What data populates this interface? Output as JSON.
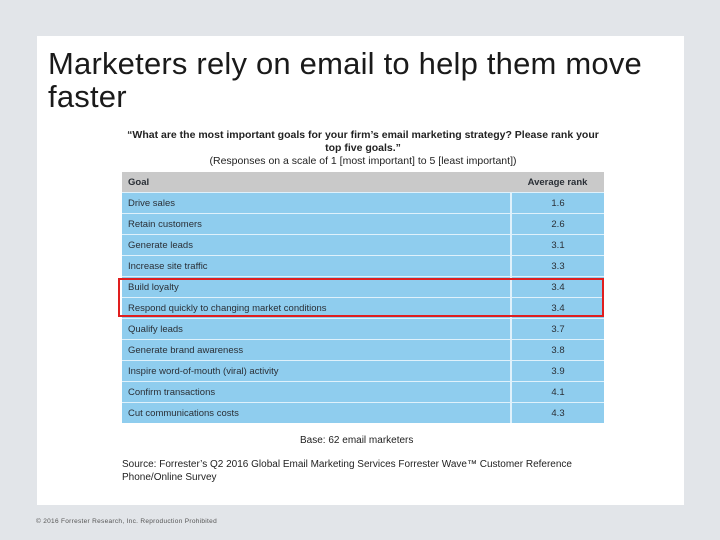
{
  "slide": {
    "title": "Marketers rely on email to help them move faster",
    "question": "“What are the most important goals for your firm’s email marketing strategy? Please rank your top five goals.”",
    "scale_note": "(Responses on a scale of 1 [most important] to 5 [least important])",
    "table": {
      "headers": {
        "goal": "Goal",
        "rank": "Average rank"
      },
      "rows": [
        {
          "goal": "Drive sales",
          "rank": "1.6"
        },
        {
          "goal": "Retain customers",
          "rank": "2.6"
        },
        {
          "goal": "Generate leads",
          "rank": "3.1"
        },
        {
          "goal": "Increase site traffic",
          "rank": "3.3"
        },
        {
          "goal": "Build loyalty",
          "rank": "3.4"
        },
        {
          "goal": "Respond quickly to changing market conditions",
          "rank": "3.4"
        },
        {
          "goal": "Qualify leads",
          "rank": "3.7"
        },
        {
          "goal": "Generate brand awareness",
          "rank": "3.8"
        },
        {
          "goal": "Inspire word-of-mouth (viral) activity",
          "rank": "3.9"
        },
        {
          "goal": "Confirm transactions",
          "rank": "4.1"
        },
        {
          "goal": "Cut communications costs",
          "rank": "4.3"
        }
      ]
    },
    "base": "Base: 62 email marketers",
    "source": "Source: Forrester’s Q2 2016 Global Email Marketing Services Forrester Wave™ Customer Reference Phone/Online Survey",
    "footer": "© 2016 Forrester Research, Inc. Reproduction Prohibited"
  },
  "colors": {
    "row_fill": "#8fcdee",
    "header_fill": "#c9c9c9",
    "highlight_border": "#e01e1e"
  }
}
